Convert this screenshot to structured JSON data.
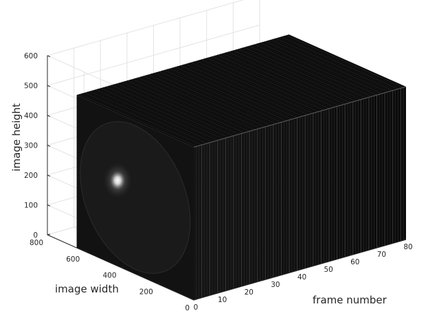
{
  "chart_data": {
    "type": "3d-slice-stack",
    "xlabel": "frame number",
    "ylabel": "image width",
    "zlabel": "image height",
    "x_ticks": [
      "0",
      "10",
      "20",
      "30",
      "40",
      "50",
      "60",
      "70",
      "80"
    ],
    "y_ticks": [
      "0",
      "200",
      "400",
      "600",
      "800"
    ],
    "z_ticks": [
      "0",
      "100",
      "200",
      "300",
      "400",
      "500",
      "600"
    ],
    "xlim": [
      0,
      80
    ],
    "ylim": [
      0,
      800
    ],
    "zlim": [
      0,
      600
    ],
    "frames": 80,
    "image_width": 640,
    "image_height": 512,
    "grid": true,
    "colormap": "gray"
  }
}
